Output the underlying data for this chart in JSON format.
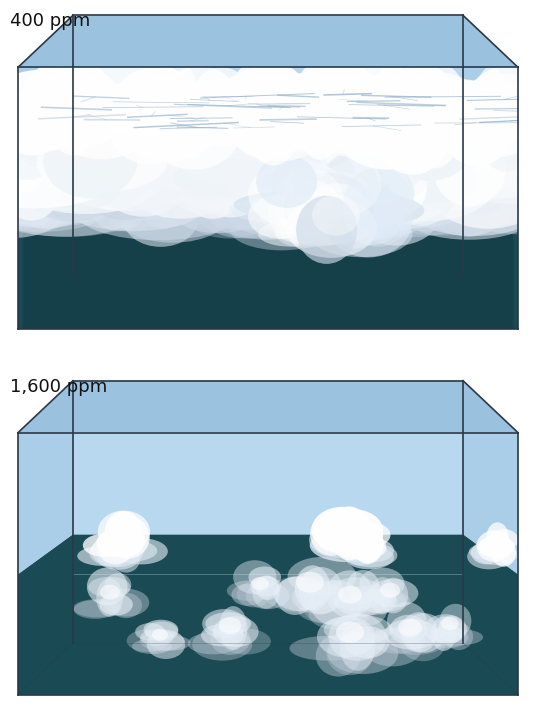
{
  "bg_color": "#ffffff",
  "panel1_label": "400 ppm",
  "panel2_label": "1,600 ppm",
  "label_fontsize": 13,
  "sky_light": "#b8d8f0",
  "sky_mid": "#a8cce8",
  "box_top_color": "#7aaed4",
  "box_side_color": "#9ac0e0",
  "box_edge_color": "#2a3848",
  "ocean_color": "#1a4a54",
  "cloud_white": "#f8fafc",
  "cloud_gray": "#ccdae8",
  "cloud_line": "#8aacc8"
}
